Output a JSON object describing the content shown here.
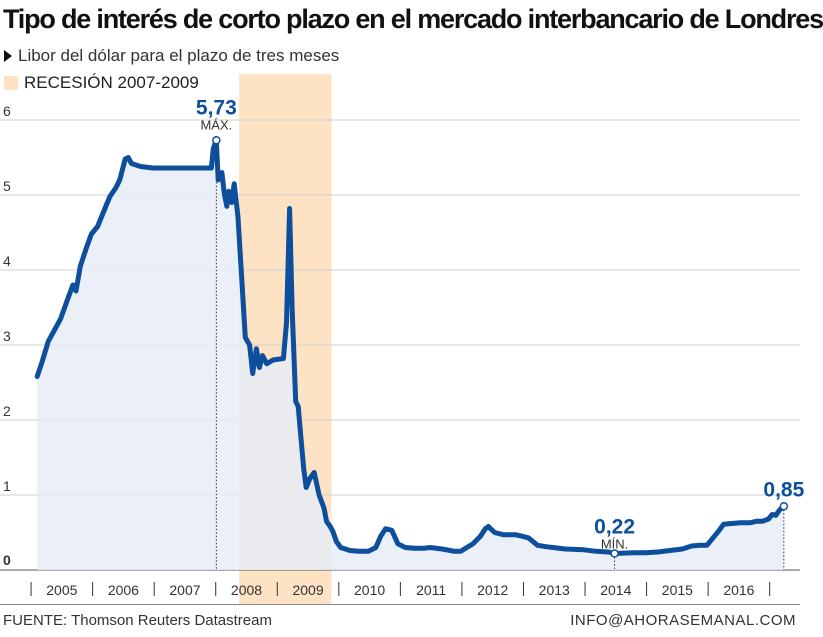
{
  "title": "Tipo de interés de corto plazo en el mercado interbancario de Londres",
  "subtitle": "Libor del dólar para el plazo de tres meses",
  "legend": {
    "label": "RECESIÓN 2007-2009",
    "color": "#fde3c4"
  },
  "footer": {
    "source": "FUENTE: Thomson Reuters Datastream",
    "credit": "INFO@AHORASEMANAL.COM"
  },
  "colors": {
    "line": "#0d4f9c",
    "area": "#e6ecf7",
    "recession": "#fde3c4",
    "grid": "#cfcfcf"
  },
  "chart_data": {
    "type": "area",
    "ylim": [
      0,
      6
    ],
    "xlim": [
      2004.6,
      2016.85
    ],
    "y_ticks": [
      0,
      1,
      2,
      3,
      4,
      5,
      6
    ],
    "y_tick_labels": [
      "0",
      "1",
      "2",
      "3",
      "4",
      "5",
      "6"
    ],
    "x_tick_labels": [
      {
        "label": "2005",
        "x": 2005.0
      },
      {
        "label": "2006",
        "x": 2006.0
      },
      {
        "label": "2007",
        "x": 2007.0
      },
      {
        "label": "2008",
        "x": 2008.0
      },
      {
        "label": "2009",
        "x": 2009.0
      },
      {
        "label": "2010",
        "x": 2010.0
      },
      {
        "label": "2011",
        "x": 2011.0
      },
      {
        "label": "2012",
        "x": 2012.0
      },
      {
        "label": "2013",
        "x": 2013.0
      },
      {
        "label": "2014",
        "x": 2014.0
      },
      {
        "label": "2015",
        "x": 2015.0
      },
      {
        "label": "2016",
        "x": 2016.0
      }
    ],
    "recession": [
      2007.9,
      2009.4
    ],
    "grid": true,
    "annotations": [
      {
        "value": "5,73",
        "label": "MÁX.",
        "x": 2007.53,
        "y": 5.73
      },
      {
        "value": "0,22",
        "label": "MÍN.",
        "x": 2014.0,
        "y": 0.22
      },
      {
        "value": "0,85",
        "label": "",
        "x": 2016.75,
        "y": 0.85
      }
    ],
    "series": [
      {
        "values": [
          [
            2004.62,
            2.58
          ],
          [
            2004.7,
            2.78
          ],
          [
            2004.8,
            3.05
          ],
          [
            2004.9,
            3.2
          ],
          [
            2005.0,
            3.35
          ],
          [
            2005.1,
            3.58
          ],
          [
            2005.2,
            3.8
          ],
          [
            2005.25,
            3.72
          ],
          [
            2005.32,
            4.05
          ],
          [
            2005.42,
            4.3
          ],
          [
            2005.5,
            4.48
          ],
          [
            2005.6,
            4.58
          ],
          [
            2005.7,
            4.78
          ],
          [
            2005.8,
            4.98
          ],
          [
            2005.9,
            5.1
          ],
          [
            2005.96,
            5.2
          ],
          [
            2006.05,
            5.48
          ],
          [
            2006.1,
            5.5
          ],
          [
            2006.15,
            5.42
          ],
          [
            2006.3,
            5.38
          ],
          [
            2006.5,
            5.36
          ],
          [
            2006.7,
            5.36
          ],
          [
            2006.9,
            5.36
          ],
          [
            2007.2,
            5.36
          ],
          [
            2007.45,
            5.36
          ],
          [
            2007.48,
            5.62
          ],
          [
            2007.53,
            5.73
          ],
          [
            2007.56,
            5.2
          ],
          [
            2007.62,
            5.3
          ],
          [
            2007.66,
            5.02
          ],
          [
            2007.7,
            4.85
          ],
          [
            2007.73,
            5.05
          ],
          [
            2007.78,
            4.9
          ],
          [
            2007.82,
            5.15
          ],
          [
            2007.88,
            4.72
          ],
          [
            2007.93,
            4.05
          ],
          [
            2008.0,
            3.1
          ],
          [
            2008.07,
            3.0
          ],
          [
            2008.12,
            2.62
          ],
          [
            2008.18,
            2.95
          ],
          [
            2008.23,
            2.7
          ],
          [
            2008.28,
            2.86
          ],
          [
            2008.35,
            2.75
          ],
          [
            2008.45,
            2.8
          ],
          [
            2008.62,
            2.82
          ],
          [
            2008.67,
            3.3
          ],
          [
            2008.72,
            4.82
          ],
          [
            2008.76,
            3.5
          ],
          [
            2008.82,
            2.25
          ],
          [
            2008.86,
            2.18
          ],
          [
            2008.9,
            1.8
          ],
          [
            2008.95,
            1.35
          ],
          [
            2008.99,
            1.1
          ],
          [
            2009.05,
            1.22
          ],
          [
            2009.12,
            1.3
          ],
          [
            2009.2,
            1.0
          ],
          [
            2009.28,
            0.82
          ],
          [
            2009.32,
            0.65
          ],
          [
            2009.38,
            0.58
          ],
          [
            2009.42,
            0.52
          ],
          [
            2009.48,
            0.38
          ],
          [
            2009.55,
            0.3
          ],
          [
            2009.7,
            0.26
          ],
          [
            2009.85,
            0.25
          ],
          [
            2010.0,
            0.25
          ],
          [
            2010.12,
            0.3
          ],
          [
            2010.2,
            0.45
          ],
          [
            2010.28,
            0.55
          ],
          [
            2010.38,
            0.53
          ],
          [
            2010.48,
            0.35
          ],
          [
            2010.6,
            0.3
          ],
          [
            2010.75,
            0.29
          ],
          [
            2010.9,
            0.29
          ],
          [
            2011.0,
            0.3
          ],
          [
            2011.2,
            0.28
          ],
          [
            2011.4,
            0.25
          ],
          [
            2011.5,
            0.25
          ],
          [
            2011.7,
            0.35
          ],
          [
            2011.82,
            0.45
          ],
          [
            2011.9,
            0.55
          ],
          [
            2011.95,
            0.58
          ],
          [
            2012.05,
            0.5
          ],
          [
            2012.2,
            0.47
          ],
          [
            2012.4,
            0.47
          ],
          [
            2012.6,
            0.43
          ],
          [
            2012.75,
            0.33
          ],
          [
            2012.9,
            0.31
          ],
          [
            2013.0,
            0.3
          ],
          [
            2013.2,
            0.28
          ],
          [
            2013.5,
            0.27
          ],
          [
            2013.7,
            0.25
          ],
          [
            2013.9,
            0.24
          ],
          [
            2014.0,
            0.22
          ],
          [
            2014.3,
            0.23
          ],
          [
            2014.5,
            0.23
          ],
          [
            2014.7,
            0.24
          ],
          [
            2014.9,
            0.26
          ],
          [
            2015.1,
            0.28
          ],
          [
            2015.25,
            0.32
          ],
          [
            2015.38,
            0.33
          ],
          [
            2015.5,
            0.33
          ],
          [
            2015.62,
            0.45
          ],
          [
            2015.7,
            0.53
          ],
          [
            2015.77,
            0.61
          ],
          [
            2015.9,
            0.62
          ],
          [
            2016.05,
            0.63
          ],
          [
            2016.2,
            0.63
          ],
          [
            2016.3,
            0.65
          ],
          [
            2016.4,
            0.65
          ],
          [
            2016.5,
            0.68
          ],
          [
            2016.56,
            0.74
          ],
          [
            2016.62,
            0.73
          ],
          [
            2016.68,
            0.8
          ],
          [
            2016.75,
            0.85
          ]
        ]
      }
    ]
  }
}
